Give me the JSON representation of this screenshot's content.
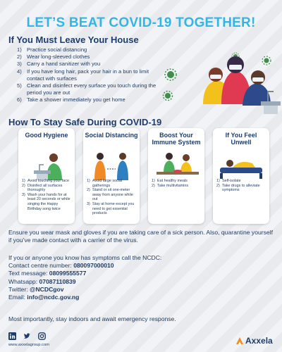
{
  "title": "LET’S BEAT COVID-19 TOGETHER!",
  "section1": {
    "heading": "If You Must Leave Your House",
    "steps": [
      {
        "num": "1)",
        "text": "Practice social distancing"
      },
      {
        "num": "2)",
        "text": "Wear long-sleeved clothes"
      },
      {
        "num": "3)",
        "text": "Carry a hand sanitizer with you"
      },
      {
        "num": "4)",
        "text": "If you have long hair, pack your hair in a bun to limit contact with surfaces"
      },
      {
        "num": "5)",
        "text": "Clean and disinfect every surface you touch during the period you are out"
      },
      {
        "num": "6)",
        "text": "Take a shower immediately you get home"
      }
    ]
  },
  "section2": {
    "heading": "How To Stay Safe During COVID-19",
    "cards": [
      {
        "title": "Good Hygiene",
        "icon": "handwashing-illustration",
        "items": [
          {
            "num": "1)",
            "text": "Avoid touching your face"
          },
          {
            "num": "2)",
            "text": "Disinfect all surfaces thoroughly"
          },
          {
            "num": "3)",
            "text": "Wash your hands for at least 20 seconds or while singing the Happy Birthday song twice"
          }
        ]
      },
      {
        "title": "Social Distancing",
        "icon": "distancing-illustration",
        "items": [
          {
            "num": "1)",
            "text": "Avoid large social gatherings"
          },
          {
            "num": "2)",
            "text": "Stand or sit one-meter away from anyone while out"
          },
          {
            "num": "3)",
            "text": "Stay at home except you need to get essential products"
          }
        ]
      },
      {
        "title": "Boost Your Immune System",
        "icon": "healthy-meal-illustration",
        "items": [
          {
            "num": "1)",
            "text": "Eat healthy meals"
          },
          {
            "num": "2)",
            "text": "Take multivitamins"
          }
        ]
      },
      {
        "title": "If You Feel Unwell",
        "icon": "self-isolate-illustration",
        "items": [
          {
            "num": "1)",
            "text": "Self-isolate"
          },
          {
            "num": "2)",
            "text": "Take drugs to alleviate symptoms"
          }
        ]
      }
    ]
  },
  "ensure_text": "Ensure you wear mask and gloves if you are taking care of a sick person. Also, quarantine yourself if you’ve made contact with a carrier of the virus.",
  "contact": {
    "intro": "If you or anyone you know has symptoms call the NCDC:",
    "lines": [
      {
        "label": "Contact centre number: ",
        "value": "080097000010"
      },
      {
        "label": "Text message: ",
        "value": "08099555577"
      },
      {
        "label": "Whatsapp: ",
        "value": "07087110839"
      },
      {
        "label": "Twitter: ",
        "value": "@NCDCgov"
      },
      {
        "label": "Email: ",
        "value": "info@ncdc.gov.ng"
      }
    ]
  },
  "final_text": "Most importantly, stay indoors and await emergency response.",
  "footer": {
    "website": "www.axxelagroup.com",
    "social_icons": [
      "linkedin-icon",
      "twitter-icon",
      "instagram-icon"
    ],
    "brand": "Axxela"
  },
  "colors": {
    "title": "#34b6e4",
    "heading": "#1e3d6b",
    "body": "#1f3a5f",
    "virus": "#3f8f4a",
    "brand_orange": "#f08a24"
  }
}
